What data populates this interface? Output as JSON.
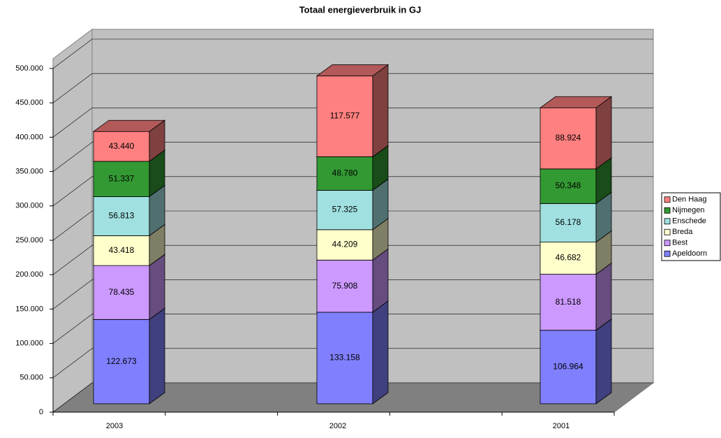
{
  "chart_data": {
    "type": "bar3d-stacked",
    "title": "Totaal energieverbruik in GJ",
    "categories": [
      "2003",
      "2002",
      "2001"
    ],
    "series": [
      {
        "name": "Apeldoorn",
        "color": "#8080ff",
        "values": [
          122673,
          133158,
          106964
        ],
        "value_labels": [
          "122.673",
          "133.158",
          "106.964"
        ]
      },
      {
        "name": "Best",
        "color": "#cc99ff",
        "values": [
          78435,
          75908,
          81518
        ],
        "value_labels": [
          "78.435",
          "75.908",
          "81.518"
        ]
      },
      {
        "name": "Breda",
        "color": "#ffffcc",
        "values": [
          43418,
          44209,
          46682
        ],
        "value_labels": [
          "43.418",
          "44.209",
          "46.682"
        ]
      },
      {
        "name": "Enschede",
        "color": "#a0e0e0",
        "values": [
          56813,
          57325,
          56178
        ],
        "value_labels": [
          "56.813",
          "57.325",
          "56.178"
        ]
      },
      {
        "name": "Nijmegen",
        "color": "#339933",
        "values": [
          51337,
          48780,
          50348
        ],
        "value_labels": [
          "51.337",
          "48.780",
          "50.348"
        ]
      },
      {
        "name": "Den Haag",
        "color": "#ff8080",
        "values": [
          43440,
          117577,
          88924
        ],
        "value_labels": [
          "43.440",
          "117.577",
          "88.924"
        ]
      }
    ],
    "ylim": [
      0,
      500000
    ],
    "yticks": [
      0,
      {
        "value": 50000,
        "label": "50.000"
      },
      {
        "value": 100000,
        "label": "100.000"
      },
      {
        "value": 150000,
        "label": "150.000"
      },
      {
        "value": 200000,
        "label": "200.000"
      },
      {
        "value": 250000,
        "label": "250.000"
      },
      {
        "value": 300000,
        "label": "300.000"
      },
      {
        "value": 350000,
        "label": "350.000"
      },
      {
        "value": 400000,
        "label": "400.000"
      },
      {
        "value": 450000,
        "label": "450.000"
      },
      {
        "value": 500000,
        "label": "500.000"
      }
    ],
    "grid": true,
    "legend": "right"
  }
}
